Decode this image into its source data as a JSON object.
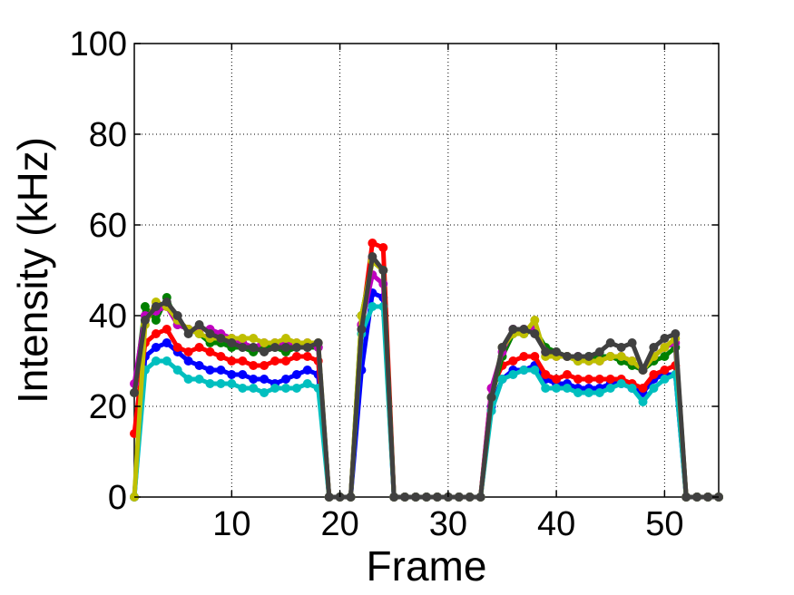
{
  "chart_data": {
    "type": "line",
    "title": "",
    "xlabel": "Frame",
    "ylabel": "Intensity (kHz)",
    "xlim": [
      1,
      55
    ],
    "ylim": [
      0,
      100
    ],
    "x_ticks": [
      10,
      20,
      30,
      40,
      50
    ],
    "y_ticks": [
      0,
      20,
      40,
      60,
      80,
      100
    ],
    "grid": true,
    "legend": "none",
    "x": [
      1,
      2,
      3,
      4,
      5,
      6,
      7,
      8,
      9,
      10,
      11,
      12,
      13,
      14,
      15,
      16,
      17,
      18,
      19,
      20,
      21,
      22,
      23,
      24,
      25,
      26,
      27,
      28,
      29,
      30,
      31,
      32,
      33,
      34,
      35,
      36,
      37,
      38,
      39,
      40,
      41,
      42,
      43,
      44,
      45,
      46,
      47,
      48,
      49,
      50,
      51,
      52,
      53,
      54,
      55
    ],
    "series": [
      {
        "color": "#0000ff",
        "values": [
          0,
          31,
          33,
          34,
          32,
          30,
          29,
          28,
          28,
          27,
          27,
          26,
          26,
          25,
          26,
          27,
          28,
          27,
          0,
          0,
          0,
          28,
          45,
          44,
          0,
          0,
          0,
          0,
          0,
          0,
          0,
          0,
          0,
          20,
          26,
          28,
          28,
          29,
          26,
          25,
          25,
          24,
          24,
          24,
          25,
          25,
          24,
          23,
          26,
          27,
          27,
          0,
          0,
          0,
          0
        ]
      },
      {
        "color": "#ff0000",
        "values": [
          14,
          34,
          36,
          37,
          33,
          32,
          33,
          32,
          31,
          30,
          30,
          29,
          29,
          30,
          30,
          31,
          31,
          30,
          0,
          0,
          0,
          38,
          56,
          55,
          0,
          0,
          0,
          0,
          0,
          0,
          0,
          0,
          0,
          24,
          29,
          30,
          31,
          31,
          27,
          26,
          27,
          26,
          26,
          26,
          26,
          26,
          25,
          24,
          27,
          28,
          29,
          0,
          0,
          0,
          0
        ]
      },
      {
        "color": "#008000",
        "values": [
          23,
          42,
          39,
          44,
          38,
          37,
          36,
          34,
          34,
          33,
          33,
          32,
          33,
          33,
          32,
          33,
          33,
          33,
          0,
          0,
          0,
          40,
          52,
          50,
          0,
          0,
          0,
          0,
          0,
          0,
          0,
          0,
          0,
          22,
          31,
          36,
          36,
          37,
          33,
          32,
          31,
          30,
          31,
          31,
          31,
          30,
          29,
          28,
          30,
          31,
          33,
          0,
          0,
          0,
          0
        ]
      },
      {
        "color": "#bf00bf",
        "values": [
          25,
          40,
          41,
          42,
          38,
          37,
          37,
          37,
          36,
          35,
          34,
          33,
          34,
          34,
          34,
          34,
          34,
          33,
          0,
          0,
          0,
          38,
          49,
          47,
          0,
          0,
          0,
          0,
          0,
          0,
          0,
          0,
          0,
          24,
          32,
          37,
          37,
          37,
          32,
          31,
          31,
          31,
          30,
          30,
          31,
          31,
          30,
          28,
          31,
          33,
          34,
          0,
          0,
          0,
          0
        ]
      },
      {
        "color": "#00bfbf",
        "values": [
          0,
          28,
          30,
          30,
          28,
          26,
          26,
          25,
          25,
          25,
          24,
          24,
          23,
          24,
          24,
          24,
          25,
          24,
          0,
          0,
          0,
          36,
          42,
          42,
          0,
          0,
          0,
          0,
          0,
          0,
          0,
          0,
          0,
          19,
          26,
          27,
          28,
          28,
          24,
          24,
          24,
          23,
          23,
          23,
          24,
          25,
          24,
          21,
          24,
          26,
          27,
          0,
          0,
          0,
          0
        ]
      },
      {
        "color": "#bfbf00",
        "values": [
          0,
          38,
          43,
          42,
          39,
          37,
          36,
          35,
          35,
          35,
          35,
          35,
          34,
          34,
          35,
          34,
          34,
          34,
          0,
          0,
          0,
          40,
          52,
          50,
          0,
          0,
          0,
          0,
          0,
          0,
          0,
          0,
          0,
          22,
          33,
          36,
          36,
          39,
          31,
          31,
          31,
          30,
          30,
          30,
          31,
          31,
          30,
          28,
          31,
          33,
          35,
          0,
          0,
          0,
          0
        ]
      },
      {
        "color": "#404040",
        "values": [
          23,
          39,
          42,
          43,
          40,
          36,
          38,
          36,
          35,
          34,
          33,
          33,
          32,
          33,
          33,
          33,
          33,
          34,
          0,
          0,
          0,
          37,
          53,
          50,
          0,
          0,
          0,
          0,
          0,
          0,
          0,
          0,
          0,
          22,
          33,
          37,
          37,
          36,
          32,
          32,
          31,
          31,
          31,
          32,
          34,
          33,
          34,
          28,
          33,
          35,
          36,
          0,
          0,
          0,
          0
        ]
      }
    ]
  }
}
